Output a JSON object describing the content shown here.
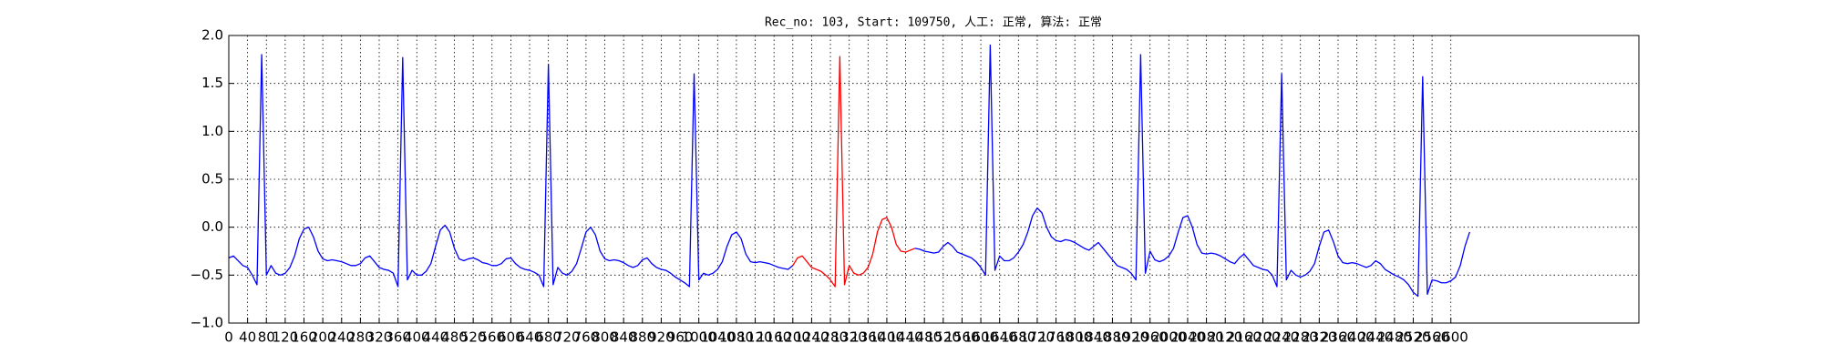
{
  "chart_data": {
    "type": "line",
    "title": "Rec_no: 103, Start: 109750, 人工: 正常, 算法: 正常",
    "x": [
      0,
      10,
      20,
      30,
      40,
      50,
      60,
      70,
      80,
      90,
      100,
      110,
      120,
      130,
      140,
      150,
      160,
      170,
      180,
      190,
      200,
      210,
      220,
      230,
      240,
      250,
      260,
      270,
      280,
      290,
      300,
      310,
      320,
      330,
      340,
      350,
      360,
      370,
      380,
      390,
      400,
      410,
      420,
      430,
      440,
      450,
      460,
      470,
      480,
      490,
      500,
      510,
      520,
      530,
      540,
      550,
      560,
      570,
      580,
      590,
      600,
      610,
      620,
      630,
      640,
      650,
      660,
      670,
      680,
      690,
      700,
      710,
      720,
      730,
      740,
      750,
      760,
      770,
      780,
      790,
      800,
      810,
      820,
      830,
      840,
      850,
      860,
      870,
      880,
      890,
      900,
      910,
      920,
      930,
      940,
      950,
      960,
      970,
      980,
      990,
      1000,
      1010,
      1020,
      1030,
      1040,
      1050,
      1060,
      1070,
      1080,
      1090,
      1100,
      1110,
      1120,
      1130,
      1140,
      1150,
      1160,
      1170,
      1180,
      1190,
      1200,
      1210,
      1220,
      1230,
      1240,
      1250,
      1260,
      1270,
      1280,
      1290,
      1300,
      1310,
      1320,
      1330,
      1340,
      1350,
      1360,
      1370,
      1380,
      1390,
      1400,
      1410,
      1420,
      1430,
      1440,
      1450,
      1460,
      1470,
      1480,
      1490,
      1500,
      1510,
      1520,
      1530,
      1540,
      1550,
      1560,
      1570,
      1580,
      1590,
      1600,
      1610,
      1620,
      1630,
      1640,
      1650,
      1660,
      1670,
      1680,
      1690,
      1700,
      1710,
      1720,
      1730,
      1740,
      1750,
      1760,
      1770,
      1780,
      1790,
      1800,
      1810,
      1820,
      1830,
      1840,
      1850,
      1860,
      1870,
      1880,
      1890,
      1900,
      1910,
      1920,
      1930,
      1940,
      1950,
      1960,
      1970,
      1980,
      1990,
      2000,
      2010,
      2020,
      2030,
      2040,
      2050,
      2060,
      2070,
      2080,
      2090,
      2100,
      2110,
      2120,
      2130,
      2140,
      2150,
      2160,
      2170,
      2180,
      2190,
      2200,
      2210,
      2220,
      2230,
      2240,
      2250,
      2260,
      2270,
      2280,
      2290,
      2300,
      2310,
      2320,
      2330,
      2340,
      2350,
      2360,
      2370,
      2380,
      2390,
      2400,
      2410,
      2420,
      2430,
      2440,
      2450,
      2460,
      2470,
      2480,
      2490,
      2500,
      2510,
      2520,
      2530,
      2540,
      2550,
      2560,
      2570,
      2580,
      2590,
      2600,
      2610,
      2620,
      2630,
      2640
    ],
    "series": [
      {
        "color": "#0000ff",
        "values": [
          -0.32,
          -0.3,
          -0.35,
          -0.4,
          -0.42,
          -0.5,
          -0.6,
          1.8,
          -0.5,
          -0.4,
          -0.48,
          -0.5,
          -0.48,
          -0.42,
          -0.3,
          -0.12,
          -0.02,
          0.0,
          -0.1,
          -0.25,
          -0.33,
          -0.35,
          -0.34,
          -0.35,
          -0.36,
          -0.38,
          -0.4,
          -0.4,
          -0.38,
          -0.32,
          -0.3,
          -0.36,
          -0.42,
          -0.44,
          -0.45,
          -0.48,
          -0.62,
          1.77,
          -0.55,
          -0.45,
          -0.5,
          -0.5,
          -0.46,
          -0.38,
          -0.2,
          -0.03,
          0.02,
          -0.05,
          -0.22,
          -0.33,
          -0.35,
          -0.33,
          -0.32,
          -0.34,
          -0.37,
          -0.38,
          -0.4,
          -0.4,
          -0.38,
          -0.33,
          -0.32,
          -0.38,
          -0.42,
          -0.44,
          -0.45,
          -0.47,
          -0.5,
          -0.62,
          1.7,
          -0.6,
          -0.42,
          -0.48,
          -0.5,
          -0.46,
          -0.38,
          -0.22,
          -0.05,
          0.0,
          -0.08,
          -0.25,
          -0.33,
          -0.35,
          -0.34,
          -0.35,
          -0.37,
          -0.4,
          -0.42,
          -0.4,
          -0.34,
          -0.32,
          -0.38,
          -0.42,
          -0.44,
          -0.45,
          -0.48,
          -0.52,
          -0.55,
          -0.58,
          -0.62,
          1.6,
          -0.55,
          -0.48,
          -0.5,
          -0.48,
          -0.44,
          -0.36,
          -0.2,
          -0.08,
          -0.05,
          -0.12,
          -0.28,
          -0.36,
          -0.37,
          -0.36,
          -0.37,
          -0.38,
          -0.4,
          -0.42,
          -0.43,
          -0.44,
          -0.4,
          null,
          null,
          null,
          null,
          null,
          null,
          null,
          null,
          null,
          null,
          null,
          null,
          null,
          null,
          null,
          null,
          null,
          null,
          null,
          null,
          null,
          null,
          null,
          null,
          null,
          -0.22,
          -0.23,
          -0.25,
          -0.26,
          -0.27,
          -0.26,
          -0.2,
          -0.16,
          -0.2,
          -0.26,
          -0.28,
          -0.3,
          -0.32,
          -0.36,
          -0.42,
          -0.5,
          1.9,
          -0.45,
          -0.3,
          -0.35,
          -0.35,
          -0.32,
          -0.26,
          -0.18,
          -0.05,
          0.12,
          0.2,
          0.15,
          0.0,
          -0.1,
          -0.14,
          -0.15,
          -0.13,
          -0.14,
          -0.16,
          -0.19,
          -0.22,
          -0.24,
          -0.2,
          -0.16,
          -0.22,
          -0.28,
          -0.34,
          -0.4,
          -0.42,
          -0.44,
          -0.48,
          -0.55,
          1.8,
          -0.48,
          -0.25,
          -0.34,
          -0.36,
          -0.34,
          -0.3,
          -0.22,
          -0.05,
          0.1,
          0.12,
          0.0,
          -0.18,
          -0.27,
          -0.28,
          -0.27,
          -0.28,
          -0.3,
          -0.33,
          -0.36,
          -0.38,
          -0.32,
          -0.28,
          -0.34,
          -0.4,
          -0.42,
          -0.44,
          -0.45,
          -0.5,
          -0.62,
          1.6,
          -0.55,
          -0.45,
          -0.5,
          -0.52,
          -0.5,
          -0.46,
          -0.38,
          -0.2,
          -0.05,
          -0.03,
          -0.15,
          -0.3,
          -0.37,
          -0.38,
          -0.37,
          -0.38,
          -0.4,
          -0.42,
          -0.4,
          -0.35,
          -0.38,
          -0.44,
          -0.47,
          -0.5,
          -0.52,
          -0.55,
          -0.6,
          -0.68,
          -0.72,
          1.57,
          -0.7,
          -0.55,
          -0.56,
          -0.58,
          -0.58,
          -0.56,
          -0.52,
          -0.4,
          -0.2,
          -0.05
        ]
      },
      {
        "color": "#ff0000",
        "values": [
          null,
          null,
          null,
          null,
          null,
          null,
          null,
          null,
          null,
          null,
          null,
          null,
          null,
          null,
          null,
          null,
          null,
          null,
          null,
          null,
          null,
          null,
          null,
          null,
          null,
          null,
          null,
          null,
          null,
          null,
          null,
          null,
          null,
          null,
          null,
          null,
          null,
          null,
          null,
          null,
          null,
          null,
          null,
          null,
          null,
          null,
          null,
          null,
          null,
          null,
          null,
          null,
          null,
          null,
          null,
          null,
          null,
          null,
          null,
          null,
          null,
          null,
          null,
          null,
          null,
          null,
          null,
          null,
          null,
          null,
          null,
          null,
          null,
          null,
          null,
          null,
          null,
          null,
          null,
          null,
          null,
          null,
          null,
          null,
          null,
          null,
          null,
          null,
          null,
          null,
          null,
          null,
          null,
          null,
          null,
          null,
          null,
          null,
          null,
          null,
          null,
          null,
          null,
          null,
          null,
          null,
          null,
          null,
          null,
          null,
          null,
          null,
          null,
          null,
          null,
          null,
          null,
          null,
          null,
          null,
          -0.4,
          -0.32,
          -0.3,
          -0.36,
          -0.42,
          -0.44,
          -0.46,
          -0.5,
          -0.55,
          -0.62,
          1.78,
          -0.6,
          -0.4,
          -0.48,
          -0.5,
          -0.48,
          -0.42,
          -0.28,
          -0.05,
          0.08,
          0.1,
          0.0,
          -0.18,
          -0.25,
          -0.26,
          -0.24,
          -0.22,
          null,
          null,
          null,
          null,
          null,
          null,
          null,
          null,
          null,
          null,
          null,
          null,
          null,
          null,
          null,
          null,
          null,
          null,
          null,
          null,
          null,
          null,
          null,
          null,
          null,
          null,
          null,
          null,
          null,
          null,
          null,
          null,
          null,
          null,
          null,
          null,
          null,
          null,
          null,
          null,
          null,
          null,
          null,
          null,
          null,
          null,
          null,
          null,
          null,
          null,
          null,
          null,
          null,
          null,
          null,
          null,
          null,
          null,
          null,
          null,
          null,
          null,
          null,
          null,
          null,
          null,
          null,
          null,
          null,
          null,
          null,
          null,
          null,
          null,
          null,
          null,
          null,
          null,
          null,
          null,
          null,
          null,
          null,
          null,
          null,
          null,
          null,
          null,
          null,
          null,
          null,
          null,
          null,
          null,
          null,
          null,
          null,
          null,
          null,
          null,
          null,
          null,
          null,
          null,
          null,
          null,
          null,
          null,
          null,
          null,
          null,
          null,
          null,
          null,
          null,
          null,
          null,
          null
        ]
      }
    ],
    "xlim": [
      0,
      3000
    ],
    "xticks": [
      0,
      40,
      80,
      120,
      160,
      200,
      240,
      280,
      320,
      360,
      400,
      440,
      480,
      520,
      560,
      600,
      640,
      680,
      720,
      760,
      800,
      840,
      880,
      920,
      960,
      1000,
      1040,
      1080,
      1120,
      1160,
      1200,
      1240,
      1280,
      1320,
      1360,
      1400,
      1440,
      1480,
      1520,
      1560,
      1600,
      1640,
      1680,
      1720,
      1760,
      1800,
      1840,
      1880,
      1920,
      1960,
      2000,
      2040,
      2080,
      2120,
      2160,
      2200,
      2240,
      2280,
      2320,
      2360,
      2400,
      2440,
      2480,
      2520,
      2560,
      2600
    ],
    "ylim": [
      -1,
      2
    ],
    "yticks": [
      {
        "value": -1,
        "label": "−1.0"
      },
      {
        "value": -0.5,
        "label": "−0.5"
      },
      {
        "value": 0,
        "label": "0.0"
      },
      {
        "value": 0.5,
        "label": "0.5"
      },
      {
        "value": 1,
        "label": "1.0"
      },
      {
        "value": 1.5,
        "label": "1.5"
      },
      {
        "value": 2,
        "label": "2.0"
      }
    ],
    "grid": true
  }
}
